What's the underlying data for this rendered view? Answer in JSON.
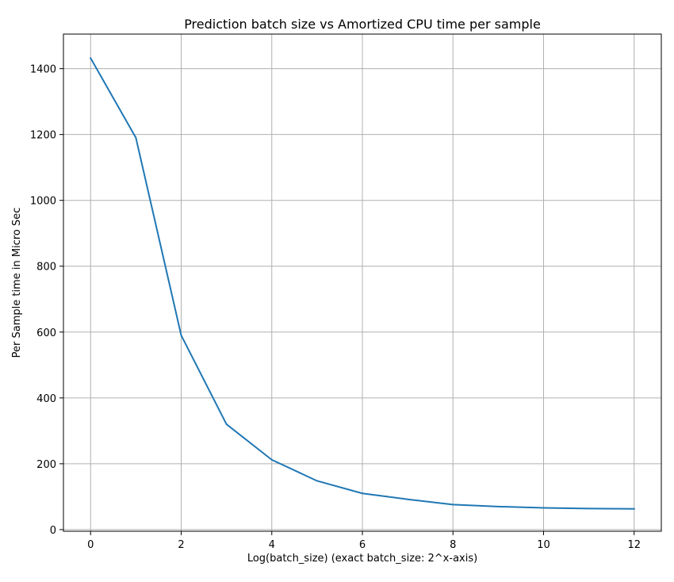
{
  "chart_data": {
    "type": "line",
    "title": "Prediction batch size vs Amortized CPU time per sample",
    "xlabel": "Log(batch_size) (exact batch_size: 2^x-axis)",
    "ylabel": "Per Sample time in Micro Sec",
    "xlim": [
      -0.6,
      12.6
    ],
    "ylim": [
      -5,
      1505
    ],
    "xticks": [
      0,
      2,
      4,
      6,
      8,
      10,
      12
    ],
    "yticks": [
      0,
      200,
      400,
      600,
      800,
      1000,
      1200,
      1400
    ],
    "grid": true,
    "line_color": "#1f77b4",
    "series": [
      {
        "x": [
          0,
          1,
          2,
          3,
          4,
          5,
          6,
          7,
          8,
          9,
          10,
          11,
          12
        ],
        "values": [
          1432,
          1190,
          590,
          320,
          212,
          148,
          110,
          92,
          76,
          70,
          66,
          64,
          63
        ]
      }
    ]
  }
}
